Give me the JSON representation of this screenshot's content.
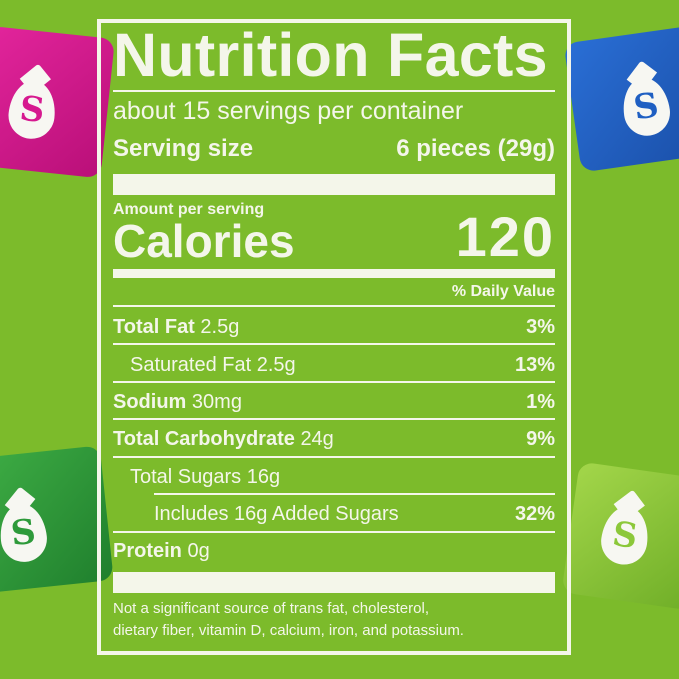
{
  "colors": {
    "background": "#7cbb2b",
    "text": "#f4f6ea",
    "candy_pink": "#d6198f",
    "candy_blue": "#1f5fc2",
    "candy_green": "#2d9a3a",
    "candy_lime": "#8cc83a"
  },
  "candies": [
    {
      "color": "pink",
      "icon": "s-drop-logo"
    },
    {
      "color": "blue",
      "icon": "s-drop-logo"
    },
    {
      "color": "green",
      "icon": "s-drop-logo"
    },
    {
      "color": "lime",
      "icon": "s-drop-logo"
    }
  ],
  "label": {
    "title": "Nutrition Facts",
    "servings": "about 15 servings per container",
    "serving_size_label": "Serving size",
    "serving_size_value": "6 pieces (29g)",
    "amount_per_serving": "Amount per serving",
    "calories_label": "Calories",
    "calories_value": "120",
    "daily_value_header": "% Daily Value",
    "nutrients": [
      {
        "name": "Total Fat",
        "amount": "2.5g",
        "dv": "3%"
      },
      {
        "name": "Saturated Fat",
        "amount": "2.5g",
        "dv": "13%"
      },
      {
        "name": "Sodium",
        "amount": "30mg",
        "dv": "1%"
      },
      {
        "name": "Total Carbohydrate",
        "amount": "24g",
        "dv": "9%"
      },
      {
        "name": "Total Sugars",
        "amount": "16g",
        "dv": ""
      },
      {
        "name": "Includes 16g Added Sugars",
        "amount": "",
        "dv": "32%"
      },
      {
        "name": "Protein",
        "amount": "0g",
        "dv": ""
      }
    ],
    "footnote_line1": "Not a significant source of trans fat, cholesterol,",
    "footnote_line2": "dietary fiber, vitamin D, calcium, iron, and potassium."
  }
}
